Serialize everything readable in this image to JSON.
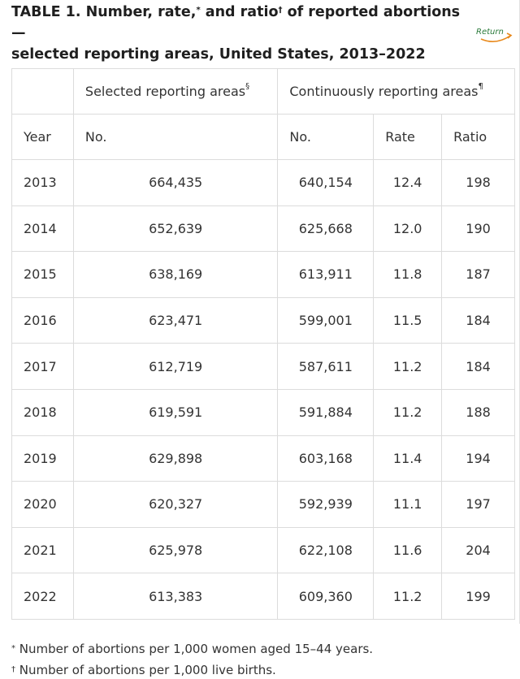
{
  "title": {
    "line1_a": "TABLE 1. Number, rate,",
    "mark_star": "*",
    "line1_b": " and ratio",
    "mark_dagger": "†",
    "line1_c": " of reported abortions —",
    "line2": "selected reporting areas, United States, 2013–2022"
  },
  "return_label": "Return",
  "header": {
    "group_selected": "Selected reporting areas",
    "group_selected_mark": "§",
    "group_continuous": "Continuously reporting areas",
    "group_continuous_mark": "¶",
    "year": "Year",
    "no_selected": "No.",
    "no_continuous": "No.",
    "rate": "Rate",
    "ratio": "Ratio"
  },
  "rows": [
    {
      "year": "2013",
      "selected_no": "664,435",
      "continuous_no": "640,154",
      "rate": "12.4",
      "ratio": "198"
    },
    {
      "year": "2014",
      "selected_no": "652,639",
      "continuous_no": "625,668",
      "rate": "12.0",
      "ratio": "190"
    },
    {
      "year": "2015",
      "selected_no": "638,169",
      "continuous_no": "613,911",
      "rate": "11.8",
      "ratio": "187"
    },
    {
      "year": "2016",
      "selected_no": "623,471",
      "continuous_no": "599,001",
      "rate": "11.5",
      "ratio": "184"
    },
    {
      "year": "2017",
      "selected_no": "612,719",
      "continuous_no": "587,611",
      "rate": "11.2",
      "ratio": "184"
    },
    {
      "year": "2018",
      "selected_no": "619,591",
      "continuous_no": "591,884",
      "rate": "11.2",
      "ratio": "188"
    },
    {
      "year": "2019",
      "selected_no": "629,898",
      "continuous_no": "603,168",
      "rate": "11.4",
      "ratio": "194"
    },
    {
      "year": "2020",
      "selected_no": "620,327",
      "continuous_no": "592,939",
      "rate": "11.1",
      "ratio": "197"
    },
    {
      "year": "2021",
      "selected_no": "625,978",
      "continuous_no": "622,108",
      "rate": "11.6",
      "ratio": "204"
    },
    {
      "year": "2022",
      "selected_no": "613,383",
      "continuous_no": "609,360",
      "rate": "11.2",
      "ratio": "199"
    }
  ],
  "footnotes": [
    {
      "mark": "*",
      "text": " Number of abortions per 1,000 women aged 15–44 years."
    },
    {
      "mark": "†",
      "text": " Number of abortions per 1,000 live births."
    }
  ],
  "colors": {
    "return_green": "#2a7a3a",
    "return_orange": "#e8891c",
    "border": "#dcdcdc"
  }
}
